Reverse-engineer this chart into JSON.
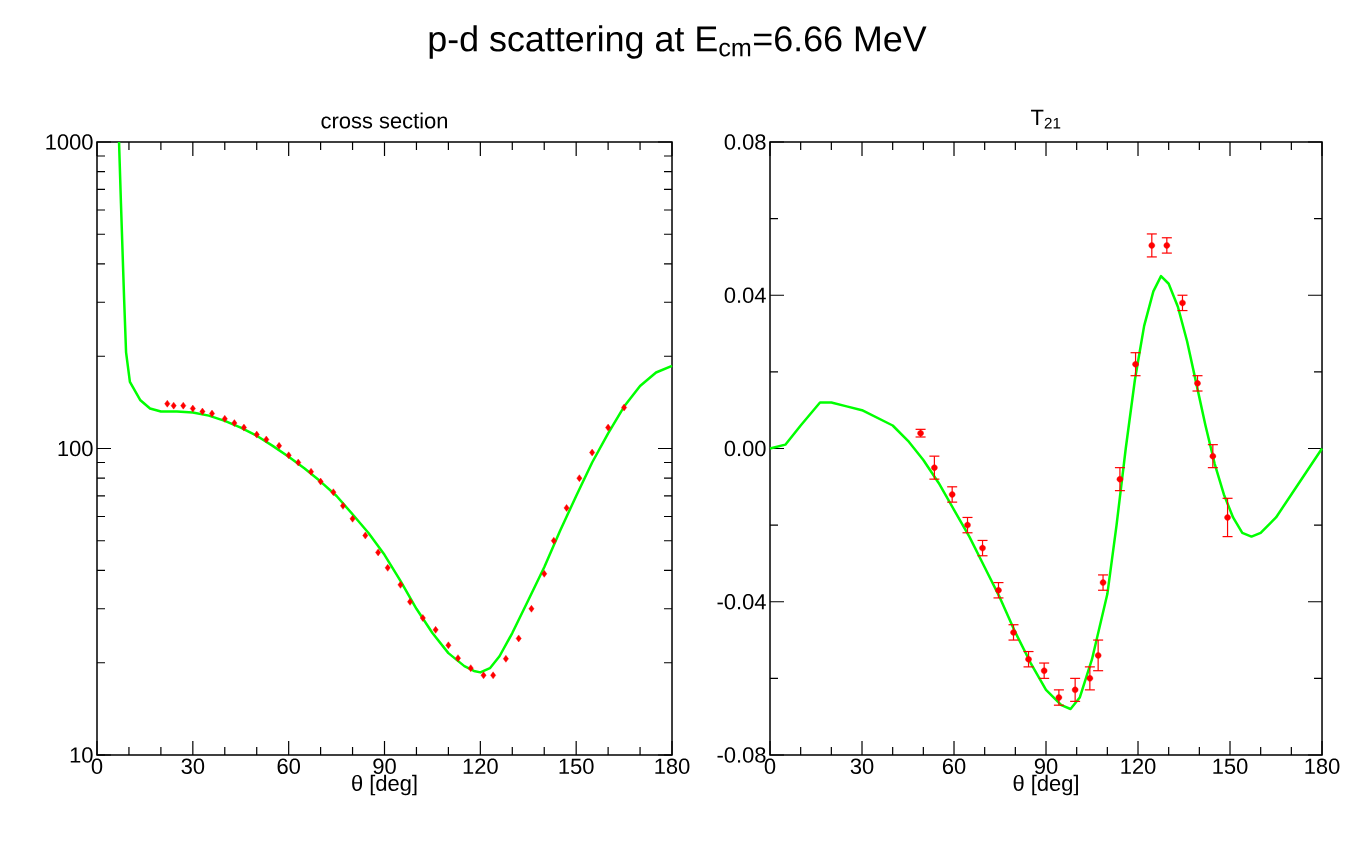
{
  "chart_data": [
    {
      "type": "line",
      "title": "p-d scattering at E$_{cm}$=6.66 MeV",
      "subtitle": "cross section",
      "xlabel": "θ [deg]",
      "log": "y",
      "xlim": [
        0,
        180
      ],
      "ylim": [
        10,
        1000
      ],
      "xticks": [
        0,
        30,
        60,
        90,
        120,
        150,
        180
      ],
      "yticks": [
        10,
        100,
        1000
      ],
      "series": [
        {
          "color": "#00ff00",
          "line_style": "solid",
          "x": [
            6.9,
            7.5,
            8.5,
            9.1,
            10.3,
            13.5,
            16.6,
            20,
            25,
            30,
            35,
            40,
            45,
            50,
            55,
            60,
            65,
            70,
            75,
            80,
            85,
            90,
            95,
            100,
            105,
            110,
            115,
            118,
            120,
            123,
            126,
            130,
            135,
            140,
            145,
            150,
            155,
            160,
            165,
            170,
            175,
            180
          ],
          "values": [
            1000,
            630,
            305,
            206,
            165,
            144,
            135,
            132,
            132,
            131,
            128,
            123,
            117,
            110,
            102,
            94,
            86,
            78,
            70,
            61,
            53,
            45,
            37,
            30,
            25,
            21.5,
            19.5,
            18.8,
            18.6,
            19.2,
            21,
            25,
            32,
            41,
            54,
            70,
            90,
            112,
            137,
            160,
            177,
            186
          ]
        },
        {
          "type": "scatter",
          "color": "#ff0000",
          "marker": "diamond",
          "x": [
            22,
            24,
            27,
            30,
            33,
            36,
            40,
            43,
            46,
            50,
            53,
            57,
            60,
            63,
            67,
            70,
            74,
            77,
            80,
            84,
            88,
            91,
            95,
            98,
            102,
            106,
            110,
            113,
            117,
            121,
            124,
            128,
            132,
            136,
            140,
            143,
            147,
            151,
            155,
            160,
            165
          ],
          "values": [
            140,
            138,
            138,
            135,
            132,
            130,
            125,
            121,
            117,
            111,
            107,
            102,
            95,
            90,
            84,
            78,
            72,
            65,
            59,
            52,
            45.8,
            40.8,
            35.9,
            31.6,
            28,
            25.6,
            22.8,
            20.7,
            19.2,
            18.2,
            18.2,
            20.6,
            24,
            30,
            39,
            50,
            64,
            80,
            97,
            117,
            136
          ]
        }
      ]
    },
    {
      "type": "line",
      "title": "T$_{21}$",
      "xlabel": "θ [deg]",
      "xlim": [
        0,
        180
      ],
      "ylim": [
        -0.08,
        0.08
      ],
      "xticks": [
        0,
        30,
        60,
        90,
        120,
        150,
        180
      ],
      "yticks": [
        -0.08,
        -0.04,
        {
          "value": 0,
          "label": "0.00"
        },
        0.04,
        0.08
      ],
      "series": [
        {
          "color": "#00ff00",
          "line_style": "solid",
          "x": [
            0,
            5,
            10,
            16.3,
            20,
            25,
            30,
            35,
            40,
            45,
            50,
            55,
            60,
            65,
            70,
            75,
            80,
            85,
            90,
            95,
            98,
            101,
            105,
            110,
            113,
            116,
            119,
            122,
            125,
            127.5,
            130,
            133,
            136,
            139,
            142,
            145,
            148,
            151,
            154,
            157,
            160,
            165,
            170,
            175,
            180
          ],
          "values": [
            0,
            0.001,
            0.006,
            0.012,
            0.012,
            0.011,
            0.01,
            0.008,
            0.006,
            0.002,
            -0.003,
            -0.009,
            -0.016,
            -0.023,
            -0.031,
            -0.039,
            -0.048,
            -0.056,
            -0.063,
            -0.067,
            -0.068,
            -0.065,
            -0.055,
            -0.038,
            -0.02,
            0,
            0.018,
            0.032,
            0.041,
            0.045,
            0.043,
            0.037,
            0.028,
            0.017,
            0.006,
            -0.004,
            -0.012,
            -0.018,
            -0.022,
            -0.023,
            -0.022,
            -0.018,
            -0.012,
            -0.006,
            0
          ]
        },
        {
          "type": "scatter",
          "color": "#ff0000",
          "marker": "circle",
          "x": [
            49.1,
            53.6,
            59.4,
            64.4,
            69.3,
            74.5,
            79.4,
            84.3,
            89.4,
            94.2,
            99.5,
            104.3,
            107,
            108.6,
            114.1,
            119.2,
            124.5,
            129.4,
            134.5,
            139.4,
            144.4,
            149.2
          ],
          "values": [
            0.004,
            -0.005,
            -0.012,
            -0.02,
            -0.026,
            -0.037,
            -0.048,
            -0.055,
            -0.058,
            -0.065,
            -0.063,
            -0.06,
            -0.054,
            -0.035,
            -0.008,
            0.022,
            0.053,
            0.053,
            0.038,
            0.017,
            -0.002,
            -0.018
          ],
          "errors": [
            0.001,
            0.003,
            0.002,
            0.002,
            0.002,
            0.002,
            0.002,
            0.002,
            0.002,
            0.002,
            0.003,
            0.003,
            0.004,
            0.002,
            0.003,
            0.003,
            0.003,
            0.002,
            0.002,
            0.002,
            0.003,
            0.005
          ]
        }
      ]
    }
  ]
}
